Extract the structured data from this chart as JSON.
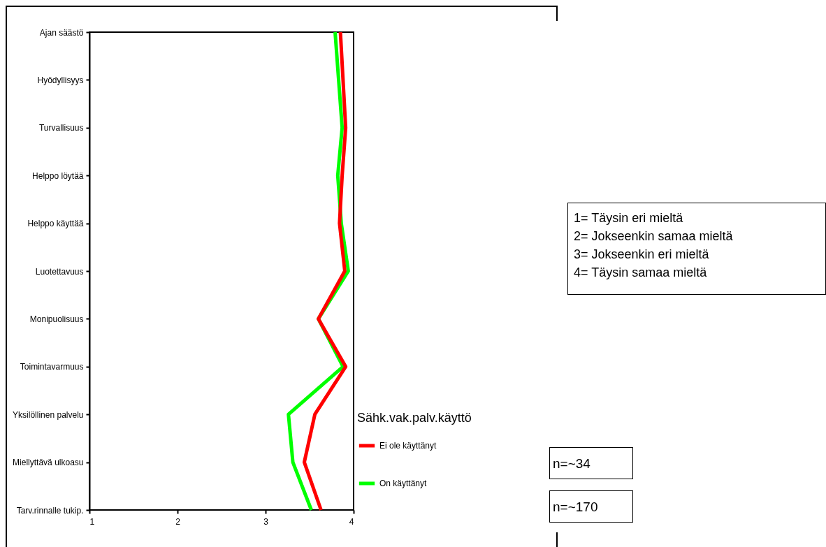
{
  "chart_data": {
    "type": "line",
    "orientation": "horizontal",
    "legend_title": "Sähk.vak.palv.käyttö",
    "legend": "right",
    "grid": false,
    "marker": "none",
    "line_style": "solid",
    "categories": [
      "Ajan säästö",
      "Hyödyllisyys",
      "Turvallisuus",
      "Helppo löytää",
      "Helppo käyttää",
      "Luotettavuus",
      "Monipuolisuus",
      "Toimintavarmuus",
      "Yksilöllinen palvelu",
      "Miellyttävä ulkoasu",
      "Tarv.rinnalle tukip."
    ],
    "xlim": [
      1,
      4
    ],
    "xticks": [
      1,
      2,
      3,
      4
    ],
    "series": [
      {
        "name": "Ei ole käyttänyt",
        "color": "#ff0000",
        "values": [
          3.85,
          3.88,
          3.91,
          3.87,
          3.84,
          3.9,
          3.6,
          3.91,
          3.56,
          3.44,
          3.63
        ]
      },
      {
        "name": "On käyttänyt",
        "color": "#00ff00",
        "values": [
          3.79,
          3.83,
          3.87,
          3.82,
          3.86,
          3.94,
          3.6,
          3.88,
          3.26,
          3.31,
          3.52
        ]
      }
    ],
    "annotations": [
      "1= Täysin eri mieltä",
      "2= Jokseenkin samaa mieltä",
      "3= Jokseenkin eri mieltä",
      "4= Täysin samaa mieltä",
      "n=~34",
      "n=~170"
    ]
  }
}
